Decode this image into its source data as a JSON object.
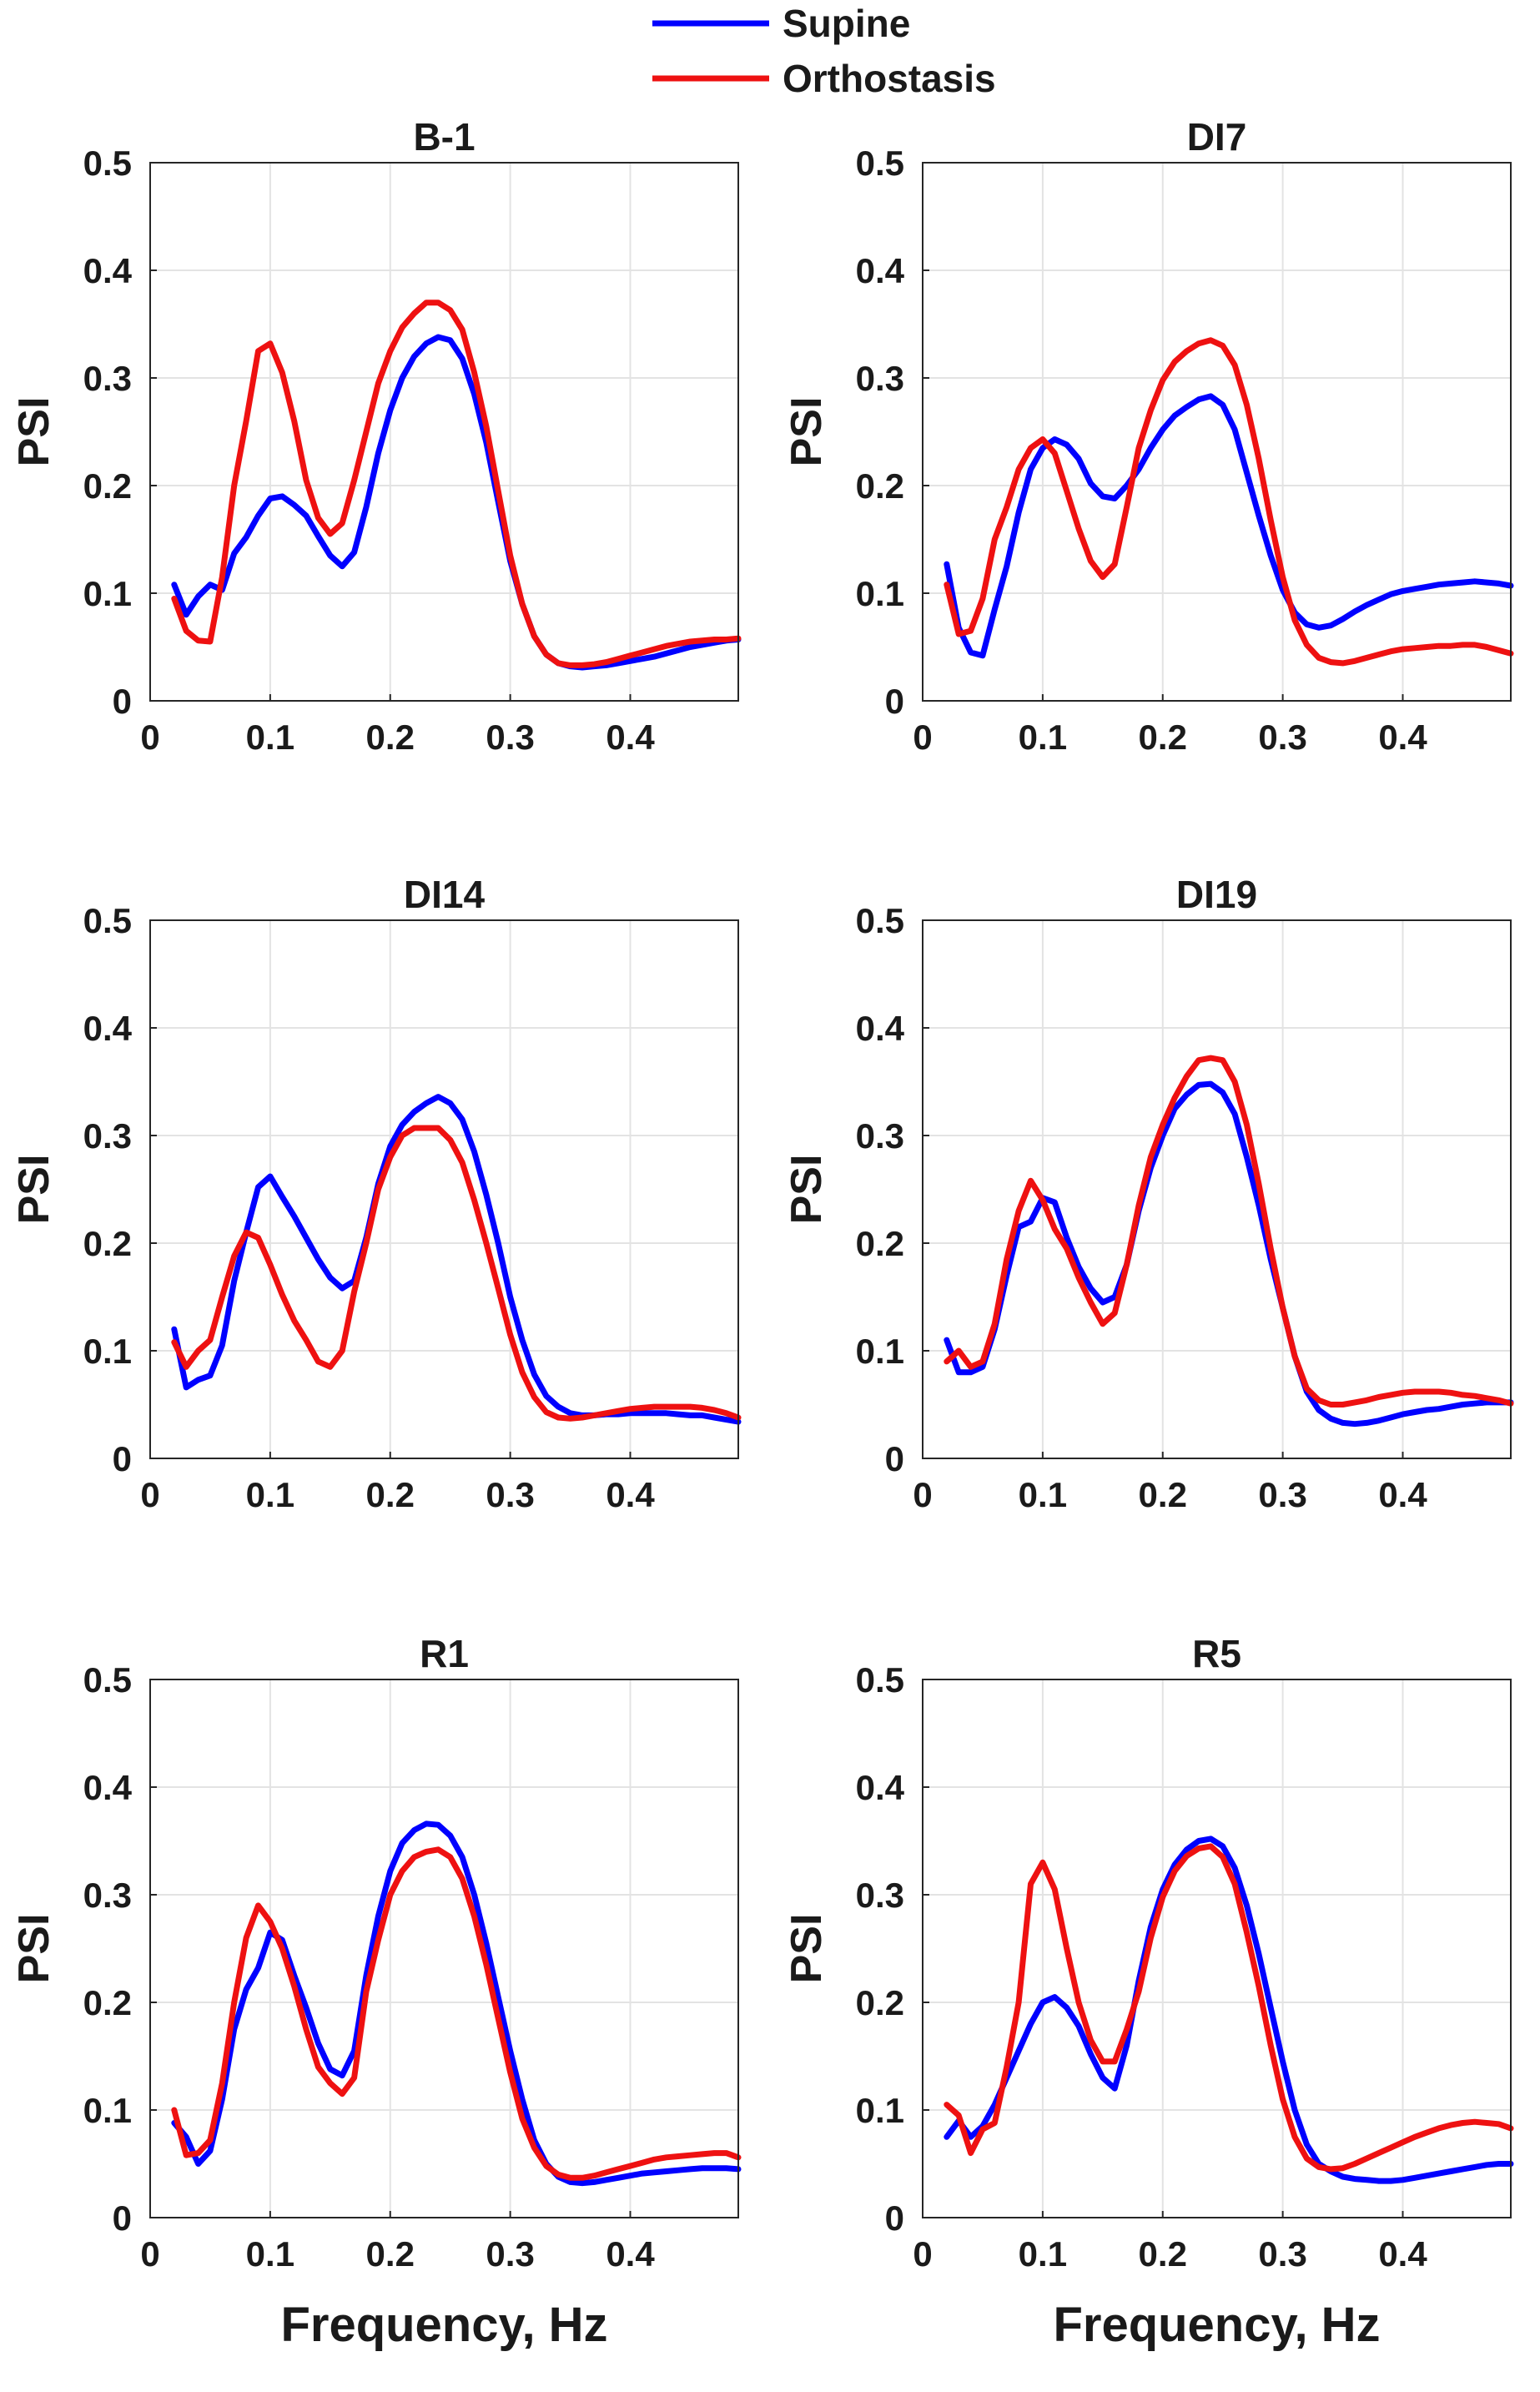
{
  "legend": [
    {
      "label": "Supine",
      "color": "#0000ff"
    },
    {
      "label": "Orthostasis",
      "color": "#ee1111"
    }
  ],
  "chart_data": [
    {
      "type": "line",
      "title": "B-1",
      "xlabel": "",
      "ylabel": "PSI",
      "xlim": [
        0,
        0.49
      ],
      "ylim": [
        0,
        0.5
      ],
      "xticks": [
        "0",
        "0.1",
        "0.2",
        "0.3",
        "0.4"
      ],
      "yticks": [
        "0",
        "0.1",
        "0.2",
        "0.3",
        "0.4",
        "0.5"
      ],
      "x": [
        0.02,
        0.03,
        0.04,
        0.05,
        0.06,
        0.07,
        0.08,
        0.09,
        0.1,
        0.11,
        0.12,
        0.13,
        0.14,
        0.15,
        0.16,
        0.17,
        0.18,
        0.19,
        0.2,
        0.21,
        0.22,
        0.23,
        0.24,
        0.25,
        0.26,
        0.27,
        0.28,
        0.29,
        0.3,
        0.31,
        0.32,
        0.33,
        0.34,
        0.35,
        0.36,
        0.37,
        0.38,
        0.39,
        0.4,
        0.41,
        0.42,
        0.43,
        0.44,
        0.45,
        0.46,
        0.47,
        0.48,
        0.49
      ],
      "series": [
        {
          "name": "Supine",
          "values": [
            0.108,
            0.08,
            0.097,
            0.108,
            0.103,
            0.137,
            0.152,
            0.172,
            0.188,
            0.19,
            0.182,
            0.172,
            0.153,
            0.135,
            0.125,
            0.138,
            0.18,
            0.23,
            0.27,
            0.3,
            0.32,
            0.332,
            0.338,
            0.335,
            0.318,
            0.285,
            0.24,
            0.185,
            0.13,
            0.09,
            0.06,
            0.043,
            0.035,
            0.032,
            0.031,
            0.032,
            0.033,
            0.035,
            0.037,
            0.039,
            0.041,
            0.044,
            0.047,
            0.05,
            0.052,
            0.054,
            0.056,
            0.057
          ]
        },
        {
          "name": "Orthostasis",
          "values": [
            0.095,
            0.065,
            0.056,
            0.055,
            0.115,
            0.2,
            0.26,
            0.325,
            0.332,
            0.305,
            0.26,
            0.205,
            0.17,
            0.155,
            0.165,
            0.205,
            0.25,
            0.295,
            0.325,
            0.347,
            0.36,
            0.37,
            0.37,
            0.363,
            0.345,
            0.305,
            0.255,
            0.195,
            0.135,
            0.09,
            0.06,
            0.043,
            0.035,
            0.033,
            0.033,
            0.034,
            0.036,
            0.039,
            0.042,
            0.045,
            0.048,
            0.051,
            0.053,
            0.055,
            0.056,
            0.057,
            0.057,
            0.058
          ]
        }
      ]
    },
    {
      "type": "line",
      "title": "DI7",
      "xlabel": "",
      "ylabel": "PSI",
      "xlim": [
        0,
        0.49
      ],
      "ylim": [
        0,
        0.5
      ],
      "xticks": [
        "0",
        "0.1",
        "0.2",
        "0.3",
        "0.4"
      ],
      "yticks": [
        "0",
        "0.1",
        "0.2",
        "0.3",
        "0.4",
        "0.5"
      ],
      "x": [
        0.02,
        0.03,
        0.04,
        0.05,
        0.06,
        0.07,
        0.08,
        0.09,
        0.1,
        0.11,
        0.12,
        0.13,
        0.14,
        0.15,
        0.16,
        0.17,
        0.18,
        0.19,
        0.2,
        0.21,
        0.22,
        0.23,
        0.24,
        0.25,
        0.26,
        0.27,
        0.28,
        0.29,
        0.3,
        0.31,
        0.32,
        0.33,
        0.34,
        0.35,
        0.36,
        0.37,
        0.38,
        0.39,
        0.4,
        0.41,
        0.42,
        0.43,
        0.44,
        0.45,
        0.46,
        0.47,
        0.48,
        0.49
      ],
      "series": [
        {
          "name": "Supine",
          "values": [
            0.127,
            0.068,
            0.045,
            0.042,
            0.085,
            0.125,
            0.175,
            0.215,
            0.235,
            0.243,
            0.238,
            0.225,
            0.202,
            0.19,
            0.188,
            0.2,
            0.215,
            0.235,
            0.252,
            0.265,
            0.273,
            0.28,
            0.283,
            0.275,
            0.252,
            0.212,
            0.172,
            0.135,
            0.103,
            0.082,
            0.071,
            0.068,
            0.07,
            0.076,
            0.083,
            0.089,
            0.094,
            0.099,
            0.102,
            0.104,
            0.106,
            0.108,
            0.109,
            0.11,
            0.111,
            0.11,
            0.109,
            0.107
          ]
        },
        {
          "name": "Orthostasis",
          "values": [
            0.108,
            0.062,
            0.065,
            0.095,
            0.15,
            0.18,
            0.215,
            0.235,
            0.243,
            0.23,
            0.195,
            0.16,
            0.13,
            0.115,
            0.127,
            0.18,
            0.235,
            0.27,
            0.298,
            0.315,
            0.325,
            0.332,
            0.335,
            0.33,
            0.312,
            0.275,
            0.225,
            0.168,
            0.115,
            0.075,
            0.052,
            0.04,
            0.036,
            0.035,
            0.037,
            0.04,
            0.043,
            0.046,
            0.048,
            0.049,
            0.05,
            0.051,
            0.051,
            0.052,
            0.052,
            0.05,
            0.047,
            0.044
          ]
        }
      ]
    },
    {
      "type": "line",
      "title": "DI14",
      "xlabel": "",
      "ylabel": "PSI",
      "xlim": [
        0,
        0.49
      ],
      "ylim": [
        0,
        0.5
      ],
      "xticks": [
        "0",
        "0.1",
        "0.2",
        "0.3",
        "0.4"
      ],
      "yticks": [
        "0",
        "0.1",
        "0.2",
        "0.3",
        "0.4",
        "0.5"
      ],
      "x": [
        0.02,
        0.03,
        0.04,
        0.05,
        0.06,
        0.07,
        0.08,
        0.09,
        0.1,
        0.11,
        0.12,
        0.13,
        0.14,
        0.15,
        0.16,
        0.17,
        0.18,
        0.19,
        0.2,
        0.21,
        0.22,
        0.23,
        0.24,
        0.25,
        0.26,
        0.27,
        0.28,
        0.29,
        0.3,
        0.31,
        0.32,
        0.33,
        0.34,
        0.35,
        0.36,
        0.37,
        0.38,
        0.39,
        0.4,
        0.41,
        0.42,
        0.43,
        0.44,
        0.45,
        0.46,
        0.47,
        0.48,
        0.49
      ],
      "series": [
        {
          "name": "Supine",
          "values": [
            0.12,
            0.066,
            0.073,
            0.077,
            0.105,
            0.165,
            0.21,
            0.252,
            0.262,
            0.243,
            0.225,
            0.205,
            0.185,
            0.168,
            0.158,
            0.165,
            0.205,
            0.255,
            0.29,
            0.31,
            0.322,
            0.33,
            0.336,
            0.33,
            0.315,
            0.285,
            0.245,
            0.2,
            0.15,
            0.11,
            0.078,
            0.058,
            0.048,
            0.042,
            0.04,
            0.04,
            0.041,
            0.041,
            0.042,
            0.042,
            0.042,
            0.042,
            0.041,
            0.04,
            0.04,
            0.038,
            0.036,
            0.034
          ]
        },
        {
          "name": "Orthostasis",
          "values": [
            0.108,
            0.085,
            0.1,
            0.11,
            0.15,
            0.188,
            0.21,
            0.205,
            0.18,
            0.152,
            0.128,
            0.11,
            0.09,
            0.085,
            0.1,
            0.155,
            0.2,
            0.25,
            0.28,
            0.3,
            0.307,
            0.307,
            0.307,
            0.296,
            0.275,
            0.24,
            0.2,
            0.158,
            0.115,
            0.08,
            0.057,
            0.043,
            0.038,
            0.037,
            0.038,
            0.04,
            0.042,
            0.044,
            0.046,
            0.047,
            0.048,
            0.048,
            0.048,
            0.048,
            0.047,
            0.045,
            0.042,
            0.038
          ]
        }
      ]
    },
    {
      "type": "line",
      "title": "DI19",
      "xlabel": "",
      "ylabel": "PSI",
      "xlim": [
        0,
        0.49
      ],
      "ylim": [
        0,
        0.5
      ],
      "xticks": [
        "0",
        "0.1",
        "0.2",
        "0.3",
        "0.4"
      ],
      "yticks": [
        "0",
        "0.1",
        "0.2",
        "0.3",
        "0.4",
        "0.5"
      ],
      "x": [
        0.02,
        0.03,
        0.04,
        0.05,
        0.06,
        0.07,
        0.08,
        0.09,
        0.1,
        0.11,
        0.12,
        0.13,
        0.14,
        0.15,
        0.16,
        0.17,
        0.18,
        0.19,
        0.2,
        0.21,
        0.22,
        0.23,
        0.24,
        0.25,
        0.26,
        0.27,
        0.28,
        0.29,
        0.3,
        0.31,
        0.32,
        0.33,
        0.34,
        0.35,
        0.36,
        0.37,
        0.38,
        0.39,
        0.4,
        0.41,
        0.42,
        0.43,
        0.44,
        0.45,
        0.46,
        0.47,
        0.48,
        0.49
      ],
      "series": [
        {
          "name": "Supine",
          "values": [
            0.11,
            0.08,
            0.08,
            0.085,
            0.12,
            0.17,
            0.215,
            0.22,
            0.242,
            0.238,
            0.205,
            0.178,
            0.158,
            0.145,
            0.15,
            0.18,
            0.23,
            0.27,
            0.3,
            0.325,
            0.338,
            0.347,
            0.348,
            0.34,
            0.32,
            0.28,
            0.235,
            0.185,
            0.14,
            0.095,
            0.062,
            0.045,
            0.037,
            0.033,
            0.032,
            0.033,
            0.035,
            0.038,
            0.041,
            0.043,
            0.045,
            0.046,
            0.048,
            0.05,
            0.051,
            0.052,
            0.052,
            0.052
          ]
        },
        {
          "name": "Orthostasis",
          "values": [
            0.09,
            0.1,
            0.085,
            0.09,
            0.125,
            0.185,
            0.23,
            0.258,
            0.24,
            0.213,
            0.195,
            0.168,
            0.145,
            0.125,
            0.135,
            0.18,
            0.235,
            0.28,
            0.31,
            0.335,
            0.355,
            0.37,
            0.372,
            0.37,
            0.35,
            0.31,
            0.255,
            0.195,
            0.14,
            0.095,
            0.065,
            0.054,
            0.05,
            0.05,
            0.052,
            0.054,
            0.057,
            0.059,
            0.061,
            0.062,
            0.062,
            0.062,
            0.061,
            0.059,
            0.058,
            0.056,
            0.054,
            0.051
          ]
        }
      ]
    },
    {
      "type": "line",
      "title": "R1",
      "xlabel": "Frequency, Hz",
      "ylabel": "PSI",
      "xlim": [
        0,
        0.49
      ],
      "ylim": [
        0,
        0.5
      ],
      "xticks": [
        "0",
        "0.1",
        "0.2",
        "0.3",
        "0.4"
      ],
      "yticks": [
        "0",
        "0.1",
        "0.2",
        "0.3",
        "0.4",
        "0.5"
      ],
      "x": [
        0.02,
        0.03,
        0.04,
        0.05,
        0.06,
        0.07,
        0.08,
        0.09,
        0.1,
        0.11,
        0.12,
        0.13,
        0.14,
        0.15,
        0.16,
        0.17,
        0.18,
        0.19,
        0.2,
        0.21,
        0.22,
        0.23,
        0.24,
        0.25,
        0.26,
        0.27,
        0.28,
        0.29,
        0.3,
        0.31,
        0.32,
        0.33,
        0.34,
        0.35,
        0.36,
        0.37,
        0.38,
        0.39,
        0.4,
        0.41,
        0.42,
        0.43,
        0.44,
        0.45,
        0.46,
        0.47,
        0.48,
        0.49
      ],
      "series": [
        {
          "name": "Supine",
          "values": [
            0.088,
            0.075,
            0.05,
            0.062,
            0.11,
            0.175,
            0.212,
            0.232,
            0.265,
            0.258,
            0.225,
            0.195,
            0.162,
            0.138,
            0.132,
            0.155,
            0.225,
            0.28,
            0.322,
            0.348,
            0.36,
            0.366,
            0.365,
            0.355,
            0.335,
            0.3,
            0.255,
            0.205,
            0.155,
            0.11,
            0.072,
            0.05,
            0.038,
            0.033,
            0.032,
            0.033,
            0.035,
            0.037,
            0.039,
            0.041,
            0.042,
            0.043,
            0.044,
            0.045,
            0.046,
            0.046,
            0.046,
            0.045
          ]
        },
        {
          "name": "Orthostasis",
          "values": [
            0.1,
            0.058,
            0.06,
            0.072,
            0.125,
            0.2,
            0.26,
            0.29,
            0.275,
            0.25,
            0.215,
            0.175,
            0.14,
            0.125,
            0.115,
            0.13,
            0.21,
            0.258,
            0.3,
            0.322,
            0.335,
            0.34,
            0.342,
            0.335,
            0.315,
            0.28,
            0.235,
            0.185,
            0.135,
            0.092,
            0.065,
            0.048,
            0.04,
            0.037,
            0.037,
            0.039,
            0.042,
            0.045,
            0.048,
            0.051,
            0.054,
            0.056,
            0.057,
            0.058,
            0.059,
            0.06,
            0.06,
            0.056
          ]
        }
      ]
    },
    {
      "type": "line",
      "title": "R5",
      "xlabel": "Frequency, Hz",
      "ylabel": "PSI",
      "xlim": [
        0,
        0.49
      ],
      "ylim": [
        0,
        0.5
      ],
      "xticks": [
        "0",
        "0.1",
        "0.2",
        "0.3",
        "0.4"
      ],
      "yticks": [
        "0",
        "0.1",
        "0.2",
        "0.3",
        "0.4",
        "0.5"
      ],
      "x": [
        0.02,
        0.03,
        0.04,
        0.05,
        0.06,
        0.07,
        0.08,
        0.09,
        0.1,
        0.11,
        0.12,
        0.13,
        0.14,
        0.15,
        0.16,
        0.17,
        0.18,
        0.19,
        0.2,
        0.21,
        0.22,
        0.23,
        0.24,
        0.25,
        0.26,
        0.27,
        0.28,
        0.29,
        0.3,
        0.31,
        0.32,
        0.33,
        0.34,
        0.35,
        0.36,
        0.37,
        0.38,
        0.39,
        0.4,
        0.41,
        0.42,
        0.43,
        0.44,
        0.45,
        0.46,
        0.47,
        0.48,
        0.49
      ],
      "series": [
        {
          "name": "Supine",
          "values": [
            0.075,
            0.09,
            0.075,
            0.085,
            0.105,
            0.13,
            0.155,
            0.18,
            0.2,
            0.205,
            0.195,
            0.178,
            0.152,
            0.13,
            0.12,
            0.16,
            0.22,
            0.27,
            0.305,
            0.328,
            0.342,
            0.35,
            0.352,
            0.345,
            0.325,
            0.29,
            0.245,
            0.195,
            0.145,
            0.1,
            0.068,
            0.05,
            0.043,
            0.038,
            0.036,
            0.035,
            0.034,
            0.034,
            0.035,
            0.037,
            0.039,
            0.041,
            0.043,
            0.045,
            0.047,
            0.049,
            0.05,
            0.05
          ]
        },
        {
          "name": "Orthostasis",
          "values": [
            0.105,
            0.095,
            0.06,
            0.082,
            0.088,
            0.14,
            0.2,
            0.31,
            0.33,
            0.305,
            0.25,
            0.2,
            0.165,
            0.145,
            0.145,
            0.175,
            0.21,
            0.26,
            0.298,
            0.322,
            0.336,
            0.343,
            0.345,
            0.335,
            0.31,
            0.265,
            0.215,
            0.16,
            0.11,
            0.075,
            0.055,
            0.047,
            0.045,
            0.046,
            0.05,
            0.055,
            0.06,
            0.065,
            0.07,
            0.075,
            0.079,
            0.083,
            0.086,
            0.088,
            0.089,
            0.088,
            0.087,
            0.083
          ]
        }
      ]
    }
  ]
}
